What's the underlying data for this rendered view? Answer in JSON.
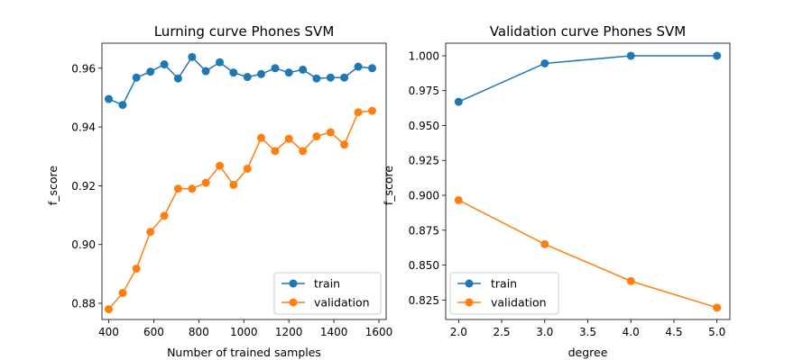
{
  "chart_data": [
    {
      "type": "line",
      "title": "Lurning curve Phones SVM",
      "xlabel": "Number of trained samples",
      "ylabel": "f_score",
      "xlim": [
        370,
        1632
      ],
      "ylim": [
        0.8745,
        0.9685
      ],
      "xticks": [
        "400",
        "600",
        "800",
        "1000",
        "1200",
        "1400",
        "1600"
      ],
      "yticks": [
        "0.88",
        "0.90",
        "0.92",
        "0.94",
        "0.96"
      ],
      "legend_position": "lower right",
      "series": [
        {
          "name": "train",
          "color": "#1f77b4",
          "x": [
            400,
            462,
            523,
            585,
            647,
            708,
            770,
            831,
            893,
            954,
            1016,
            1077,
            1139,
            1200,
            1262,
            1323,
            1385,
            1446,
            1508,
            1570
          ],
          "y": [
            0.9495,
            0.9475,
            0.9568,
            0.9588,
            0.9613,
            0.9565,
            0.9638,
            0.959,
            0.962,
            0.9585,
            0.957,
            0.958,
            0.96,
            0.9585,
            0.9595,
            0.9565,
            0.9568,
            0.9568,
            0.9605,
            0.96
          ]
        },
        {
          "name": "validation",
          "color": "#ff7f0e",
          "x": [
            400,
            462,
            523,
            585,
            647,
            708,
            770,
            831,
            893,
            954,
            1016,
            1077,
            1139,
            1200,
            1262,
            1323,
            1385,
            1446,
            1508,
            1570
          ],
          "y": [
            0.878,
            0.8835,
            0.8918,
            0.9043,
            0.9098,
            0.919,
            0.919,
            0.921,
            0.9268,
            0.9203,
            0.9258,
            0.9363,
            0.9318,
            0.936,
            0.9318,
            0.9368,
            0.9382,
            0.934,
            0.945,
            0.9455
          ]
        }
      ]
    },
    {
      "type": "line",
      "title": "Validation curve Phones SVM",
      "xlabel": "degree",
      "ylabel": "f_score",
      "xlim": [
        1.85,
        5.15
      ],
      "ylim": [
        0.811,
        1.009
      ],
      "xticks": [
        "2.0",
        "2.5",
        "3.0",
        "3.5",
        "4.0",
        "4.5",
        "5.0"
      ],
      "yticks": [
        "0.825",
        "0.850",
        "0.875",
        "0.900",
        "0.925",
        "0.950",
        "0.975",
        "1.000"
      ],
      "legend_position": "lower left",
      "series": [
        {
          "name": "train",
          "color": "#1f77b4",
          "x": [
            2,
            3,
            4,
            5
          ],
          "y": [
            0.967,
            0.9945,
            1.0,
            1.0
          ]
        },
        {
          "name": "validation",
          "color": "#ff7f0e",
          "x": [
            2,
            3,
            4,
            5
          ],
          "y": [
            0.8965,
            0.865,
            0.8385,
            0.8195
          ]
        }
      ]
    }
  ]
}
